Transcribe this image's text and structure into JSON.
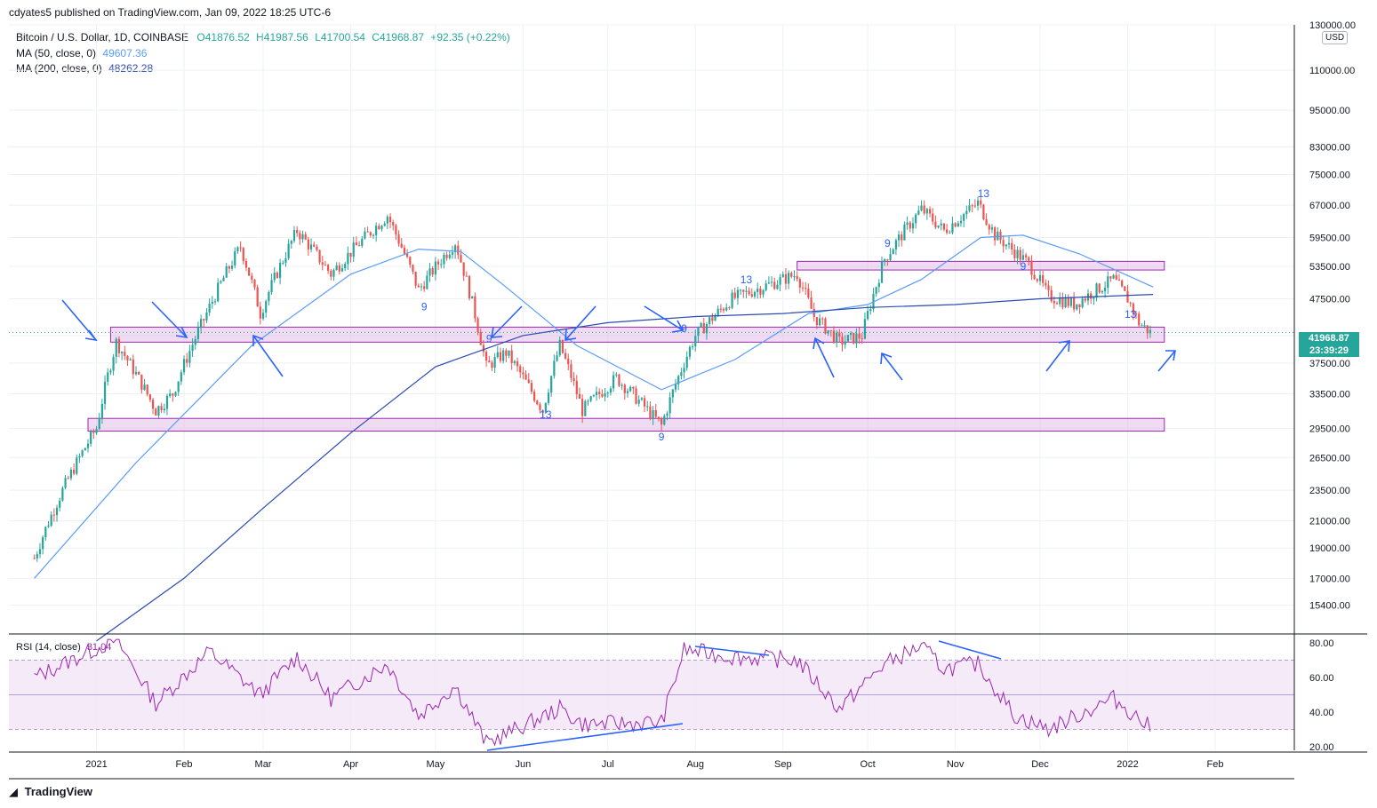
{
  "publisher": {
    "text": "cdyates5 published on TradingView.com, Jan 09, 2022 18:25 UTC-6"
  },
  "symbol": {
    "name": "Bitcoin / U.S. Dollar, 1D, COINBASE",
    "open": "O41876.52",
    "high": "H41987.56",
    "low": "L41700.54",
    "close": "C41968.87",
    "change": "+92.35 (+0.22%)"
  },
  "ma50": {
    "label": "MA (50, close, 0)",
    "value": "49607.36",
    "color": "#5b9cf6"
  },
  "ma200": {
    "label": "MA (200, close, 0)",
    "value": "48262.28",
    "color": "#2b4bb0"
  },
  "currency": "USD",
  "last_price": {
    "price": "41968.87",
    "countdown": "23:39:29"
  },
  "rsi": {
    "label": "RSI (14, close)",
    "value": "31.04",
    "color": "#9c27b0"
  },
  "footer": {
    "brand": "TradingView",
    "logo_icon": "tradingview-logo-icon"
  },
  "colors": {
    "up": "#26a69a",
    "down": "#ef5350",
    "zone": "#e1bee7",
    "zone_border": "#9c27b0",
    "annotation": "#2962ff"
  },
  "chart_data": {
    "type": "candlestick",
    "scale": "log",
    "price_axis_ticks": [
      "130000.00",
      "110000.00",
      "95000.00",
      "83000.00",
      "75000.00",
      "67000.00",
      "59500.00",
      "53500.00",
      "47500.00",
      "41500.00",
      "37500.00",
      "33500.00",
      "29500.00",
      "26500.00",
      "23500.00",
      "21000.00",
      "19000.00",
      "17000.00",
      "15400.00"
    ],
    "rsi_axis_ticks": [
      "80.00",
      "60.00",
      "40.00",
      "20.00"
    ],
    "time_axis_labels": [
      "2021",
      "Feb",
      "Mar",
      "Apr",
      "May",
      "Jun",
      "Jul",
      "Aug",
      "Sep",
      "Oct",
      "Nov",
      "Dec",
      "2022",
      "Feb"
    ],
    "price_path": [
      [
        "2020-12-10",
        18300
      ],
      [
        "2020-12-20",
        23500
      ],
      [
        "2021-01-01",
        29500
      ],
      [
        "2021-01-08",
        40500
      ],
      [
        "2021-01-15",
        36000
      ],
      [
        "2021-01-22",
        31500
      ],
      [
        "2021-01-28",
        33500
      ],
      [
        "2021-02-08",
        44000
      ],
      [
        "2021-02-21",
        57500
      ],
      [
        "2021-02-28",
        45000
      ],
      [
        "2021-03-13",
        61000
      ],
      [
        "2021-03-25",
        52000
      ],
      [
        "2021-04-14",
        64500
      ],
      [
        "2021-04-25",
        49000
      ],
      [
        "2021-05-08",
        58500
      ],
      [
        "2021-05-19",
        37000
      ],
      [
        "2021-05-26",
        39000
      ],
      [
        "2021-06-08",
        31500
      ],
      [
        "2021-06-14",
        40000
      ],
      [
        "2021-06-22",
        31500
      ],
      [
        "2021-07-04",
        35500
      ],
      [
        "2021-07-20",
        29800
      ],
      [
        "2021-08-01",
        41500
      ],
      [
        "2021-08-14",
        47500
      ],
      [
        "2021-09-06",
        52000
      ],
      [
        "2021-09-12",
        44500
      ],
      [
        "2021-09-21",
        40500
      ],
      [
        "2021-09-29",
        41500
      ],
      [
        "2021-10-07",
        55000
      ],
      [
        "2021-10-20",
        66000
      ],
      [
        "2021-10-28",
        61000
      ],
      [
        "2021-11-09",
        67500
      ],
      [
        "2021-11-15",
        60000
      ],
      [
        "2021-11-27",
        54000
      ],
      [
        "2021-12-04",
        48000
      ],
      [
        "2021-12-13",
        46500
      ],
      [
        "2021-12-27",
        51000
      ],
      [
        "2022-01-01",
        47500
      ],
      [
        "2022-01-05",
        43500
      ],
      [
        "2022-01-09",
        41968.87
      ]
    ],
    "ma50_path": [
      [
        "2020-12-10",
        17000
      ],
      [
        "2021-01-15",
        26000
      ],
      [
        "2021-02-25",
        40000
      ],
      [
        "2021-04-01",
        52000
      ],
      [
        "2021-04-25",
        57000
      ],
      [
        "2021-05-10",
        56500
      ],
      [
        "2021-05-25",
        50000
      ],
      [
        "2021-06-20",
        40000
      ],
      [
        "2021-07-20",
        34000
      ],
      [
        "2021-08-15",
        38000
      ],
      [
        "2021-09-10",
        45000
      ],
      [
        "2021-10-01",
        46500
      ],
      [
        "2021-10-20",
        51000
      ],
      [
        "2021-11-10",
        59500
      ],
      [
        "2021-11-25",
        60000
      ],
      [
        "2021-12-15",
        56000
      ],
      [
        "2022-01-10",
        49607.36
      ]
    ],
    "ma200_path": [
      [
        "2021-01-01",
        13500
      ],
      [
        "2021-02-01",
        17000
      ],
      [
        "2021-03-01",
        22000
      ],
      [
        "2021-04-01",
        29000
      ],
      [
        "2021-05-01",
        37000
      ],
      [
        "2021-06-01",
        41500
      ],
      [
        "2021-07-01",
        43500
      ],
      [
        "2021-08-01",
        44500
      ],
      [
        "2021-09-01",
        45000
      ],
      [
        "2021-10-01",
        46000
      ],
      [
        "2021-11-01",
        46500
      ],
      [
        "2021-12-01",
        47500
      ],
      [
        "2022-01-10",
        48262.28
      ]
    ],
    "rsi_path": [
      [
        "2020-12-10",
        60
      ],
      [
        "2021-01-08",
        82
      ],
      [
        "2021-01-22",
        45
      ],
      [
        "2021-02-10",
        75
      ],
      [
        "2021-02-28",
        50
      ],
      [
        "2021-03-13",
        72
      ],
      [
        "2021-03-25",
        48
      ],
      [
        "2021-04-14",
        68
      ],
      [
        "2021-04-25",
        38
      ],
      [
        "2021-05-08",
        55
      ],
      [
        "2021-05-19",
        22
      ],
      [
        "2021-06-14",
        42
      ],
      [
        "2021-06-22",
        33
      ],
      [
        "2021-07-20",
        34
      ],
      [
        "2021-07-28",
        76
      ],
      [
        "2021-08-14",
        72
      ],
      [
        "2021-09-06",
        70
      ],
      [
        "2021-09-21",
        42
      ],
      [
        "2021-10-07",
        68
      ],
      [
        "2021-10-20",
        78
      ],
      [
        "2021-10-28",
        65
      ],
      [
        "2021-11-09",
        68
      ],
      [
        "2021-11-22",
        38
      ],
      [
        "2021-12-04",
        30
      ],
      [
        "2021-12-27",
        48
      ],
      [
        "2022-01-09",
        31
      ]
    ],
    "support_zones": [
      {
        "from": "2021-01-06",
        "to": "2022-01-14",
        "low": 40500,
        "high": 42800
      },
      {
        "from": "2020-12-29",
        "to": "2022-01-14",
        "low": 29200,
        "high": 30600
      },
      {
        "from": "2021-09-06",
        "to": "2022-01-14",
        "low": 52800,
        "high": 54500
      }
    ],
    "sequential_counts": [
      {
        "date": "2021-04-27",
        "price": 45500,
        "label": "9"
      },
      {
        "date": "2021-05-20",
        "price": 40500,
        "label": "9"
      },
      {
        "date": "2021-06-09",
        "price": 30600,
        "label": "13"
      },
      {
        "date": "2021-07-20",
        "price": 28200,
        "label": "9"
      },
      {
        "date": "2021-07-28",
        "price": 42000,
        "label": "9"
      },
      {
        "date": "2021-08-19",
        "price": 50300,
        "label": "13"
      },
      {
        "date": "2021-10-08",
        "price": 57500,
        "label": "9"
      },
      {
        "date": "2021-11-11",
        "price": 69000,
        "label": "13"
      },
      {
        "date": "2021-11-25",
        "price": 52800,
        "label": "9"
      },
      {
        "date": "2022-01-02",
        "price": 44300,
        "label": "13"
      }
    ],
    "rsi_levels": [
      70,
      50,
      30
    ]
  }
}
